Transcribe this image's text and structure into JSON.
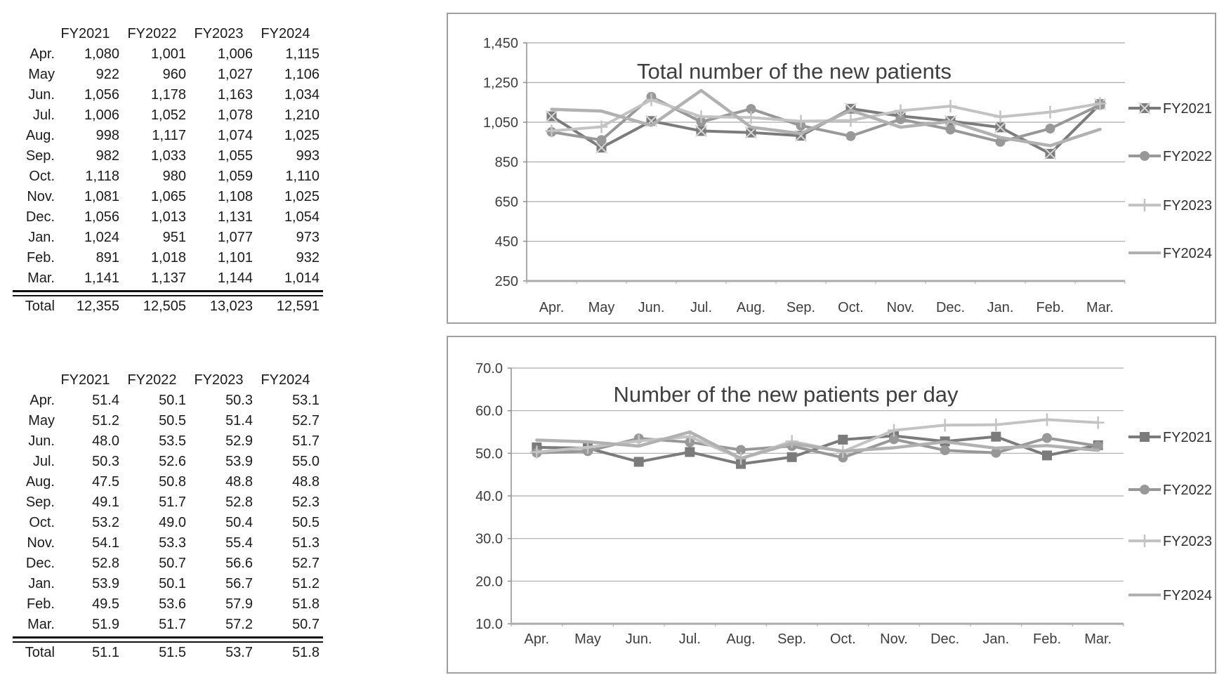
{
  "palette": {
    "background": "#ffffff",
    "box_border": "#9f9f9f",
    "grid": "#ababab",
    "axis": "#8f8f8f",
    "tick": "#3d3d3d",
    "title": "#3f3f3f",
    "legend_text": "#303030",
    "marker_x_inner": "#d6d6d6",
    "table_text": "#1b1b1b",
    "table_rule": "#111111"
  },
  "tables": [
    {
      "name": "monthly-total-table",
      "corner": "",
      "columns": [
        "FY2021",
        "FY2022",
        "FY2023",
        "FY2024"
      ],
      "rows": [
        {
          "label": "Apr.",
          "values": [
            "1,080",
            "1,001",
            "1,006",
            "1,115"
          ]
        },
        {
          "label": "May",
          "values": [
            "922",
            "960",
            "1,027",
            "1,106"
          ]
        },
        {
          "label": "Jun.",
          "values": [
            "1,056",
            "1,178",
            "1,163",
            "1,034"
          ]
        },
        {
          "label": "Jul.",
          "values": [
            "1,006",
            "1,052",
            "1,078",
            "1,210"
          ]
        },
        {
          "label": "Aug.",
          "values": [
            "998",
            "1,117",
            "1,074",
            "1,025"
          ]
        },
        {
          "label": "Sep.",
          "values": [
            "982",
            "1,033",
            "1,055",
            "993"
          ]
        },
        {
          "label": "Oct.",
          "values": [
            "1,118",
            "980",
            "1,059",
            "1,110"
          ]
        },
        {
          "label": "Nov.",
          "values": [
            "1,081",
            "1,065",
            "1,108",
            "1,025"
          ]
        },
        {
          "label": "Dec.",
          "values": [
            "1,056",
            "1,013",
            "1,131",
            "1,054"
          ]
        },
        {
          "label": "Jan.",
          "values": [
            "1,024",
            "951",
            "1,077",
            "973"
          ]
        },
        {
          "label": "Feb.",
          "values": [
            "891",
            "1,018",
            "1,101",
            "932"
          ]
        },
        {
          "label": "Mar.",
          "values": [
            "1,141",
            "1,137",
            "1,144",
            "1,014"
          ]
        }
      ],
      "total_row": {
        "label": "Total",
        "values": [
          "12,355",
          "12,505",
          "13,023",
          "12,591"
        ]
      }
    },
    {
      "name": "per-day-table",
      "corner": "",
      "columns": [
        "FY2021",
        "FY2022",
        "FY2023",
        "FY2024"
      ],
      "rows": [
        {
          "label": "Apr.",
          "values": [
            "51.4",
            "50.1",
            "50.3",
            "53.1"
          ]
        },
        {
          "label": "May",
          "values": [
            "51.2",
            "50.5",
            "51.4",
            "52.7"
          ]
        },
        {
          "label": "Jun.",
          "values": [
            "48.0",
            "53.5",
            "52.9",
            "51.7"
          ]
        },
        {
          "label": "Jul.",
          "values": [
            "50.3",
            "52.6",
            "53.9",
            "55.0"
          ]
        },
        {
          "label": "Aug.",
          "values": [
            "47.5",
            "50.8",
            "48.8",
            "48.8"
          ]
        },
        {
          "label": "Sep.",
          "values": [
            "49.1",
            "51.7",
            "52.8",
            "52.3"
          ]
        },
        {
          "label": "Oct.",
          "values": [
            "53.2",
            "49.0",
            "50.4",
            "50.5"
          ]
        },
        {
          "label": "Nov.",
          "values": [
            "54.1",
            "53.3",
            "55.4",
            "51.3"
          ]
        },
        {
          "label": "Dec.",
          "values": [
            "52.8",
            "50.7",
            "56.6",
            "52.7"
          ]
        },
        {
          "label": "Jan.",
          "values": [
            "53.9",
            "50.1",
            "56.7",
            "51.2"
          ]
        },
        {
          "label": "Feb.",
          "values": [
            "49.5",
            "53.6",
            "57.9",
            "51.8"
          ]
        },
        {
          "label": "Mar.",
          "values": [
            "51.9",
            "51.7",
            "57.2",
            "50.7"
          ]
        }
      ],
      "total_row": {
        "label": "Total",
        "values": [
          "51.1",
          "51.5",
          "53.7",
          "51.8"
        ]
      }
    }
  ],
  "chart_data": [
    {
      "type": "line",
      "title": "Total number of the new patients",
      "xlabel": "",
      "ylabel": "",
      "categories": [
        "Apr.",
        "May",
        "Jun.",
        "Jul.",
        "Aug.",
        "Sep.",
        "Oct.",
        "Nov.",
        "Dec.",
        "Jan.",
        "Feb.",
        "Mar."
      ],
      "series": [
        {
          "name": "FY2021",
          "values": [
            1080,
            922,
            1056,
            1006,
            998,
            982,
            1118,
            1081,
            1056,
            1024,
            891,
            1141
          ],
          "color": "#7b7b7b",
          "marker": "x-square"
        },
        {
          "name": "FY2022",
          "values": [
            1001,
            960,
            1178,
            1052,
            1117,
            1033,
            980,
            1065,
            1013,
            951,
            1018,
            1137
          ],
          "color": "#989898",
          "marker": "circle"
        },
        {
          "name": "FY2023",
          "values": [
            1006,
            1027,
            1163,
            1078,
            1074,
            1055,
            1059,
            1108,
            1131,
            1077,
            1101,
            1144
          ],
          "color": "#c3c3c3",
          "marker": "plus"
        },
        {
          "name": "FY2024",
          "values": [
            1115,
            1106,
            1034,
            1210,
            1025,
            993,
            1110,
            1025,
            1054,
            973,
            932,
            1014
          ],
          "color": "#b1b1b1",
          "marker": "none"
        }
      ],
      "ylim": [
        250,
        1450
      ],
      "ytick_step": 200,
      "yformat": "comma",
      "grid": true,
      "legend_position": "right"
    },
    {
      "type": "line",
      "title": "Number of the new patients per day",
      "xlabel": "",
      "ylabel": "",
      "categories": [
        "Apr.",
        "May",
        "Jun.",
        "Jul.",
        "Aug.",
        "Sep.",
        "Oct.",
        "Nov.",
        "Dec.",
        "Jan.",
        "Feb.",
        "Mar."
      ],
      "series": [
        {
          "name": "FY2021",
          "values": [
            51.4,
            51.2,
            48.0,
            50.3,
            47.5,
            49.1,
            53.2,
            54.1,
            52.8,
            53.9,
            49.5,
            51.9
          ],
          "color": "#7b7b7b",
          "marker": "square"
        },
        {
          "name": "FY2022",
          "values": [
            50.1,
            50.5,
            53.5,
            52.6,
            50.8,
            51.7,
            49.0,
            53.3,
            50.7,
            50.1,
            53.6,
            51.7
          ],
          "color": "#989898",
          "marker": "circle"
        },
        {
          "name": "FY2023",
          "values": [
            50.3,
            51.4,
            52.9,
            53.9,
            48.8,
            52.8,
            50.4,
            55.4,
            56.6,
            56.7,
            57.9,
            57.2
          ],
          "color": "#c3c3c3",
          "marker": "plus"
        },
        {
          "name": "FY2024",
          "values": [
            53.1,
            52.7,
            51.7,
            55.0,
            48.8,
            52.3,
            50.5,
            51.3,
            52.7,
            51.2,
            51.8,
            50.7
          ],
          "color": "#b1b1b1",
          "marker": "none"
        }
      ],
      "ylim": [
        10,
        70
      ],
      "ytick_step": 10,
      "yformat": "one-decimal",
      "grid": true,
      "legend_position": "right"
    }
  ]
}
